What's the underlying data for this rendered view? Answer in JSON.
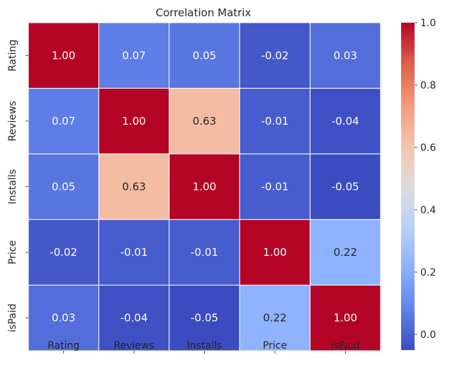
{
  "chart_data": {
    "type": "heatmap",
    "title": "Correlation Matrix",
    "x_labels": [
      "Rating",
      "Reviews",
      "Installs",
      "Price",
      "isPaid"
    ],
    "y_labels": [
      "Rating",
      "Reviews",
      "Installs",
      "Price",
      "isPaid"
    ],
    "values": [
      [
        1.0,
        0.07,
        0.05,
        -0.02,
        0.03
      ],
      [
        0.07,
        1.0,
        0.63,
        -0.01,
        -0.04
      ],
      [
        0.05,
        0.63,
        1.0,
        -0.01,
        -0.05
      ],
      [
        -0.02,
        -0.01,
        -0.01,
        1.0,
        0.22
      ],
      [
        0.03,
        -0.04,
        -0.05,
        0.22,
        1.0
      ]
    ],
    "value_labels": [
      [
        "1.00",
        "0.07",
        "0.05",
        "-0.02",
        "0.03"
      ],
      [
        "0.07",
        "1.00",
        "0.63",
        "-0.01",
        "-0.04"
      ],
      [
        "0.05",
        "0.63",
        "1.00",
        "-0.01",
        "-0.05"
      ],
      [
        "-0.02",
        "-0.01",
        "-0.01",
        "1.00",
        "0.22"
      ],
      [
        "0.03",
        "-0.04",
        "-0.05",
        "0.22",
        "1.00"
      ]
    ],
    "colormap": "coolwarm",
    "vmin": -0.05,
    "vmax": 1.0,
    "colorbar_ticks": [
      0.0,
      0.2,
      0.4,
      0.6,
      0.8,
      1.0
    ],
    "colorbar_tick_labels": [
      "0.0",
      "0.2",
      "0.4",
      "0.6",
      "0.8",
      "1.0"
    ],
    "grid": false,
    "colors": {
      "low": "#3b4cc0",
      "mid": "#dddcdc",
      "high": "#b40426",
      "cell_border": "#ffffff"
    }
  }
}
